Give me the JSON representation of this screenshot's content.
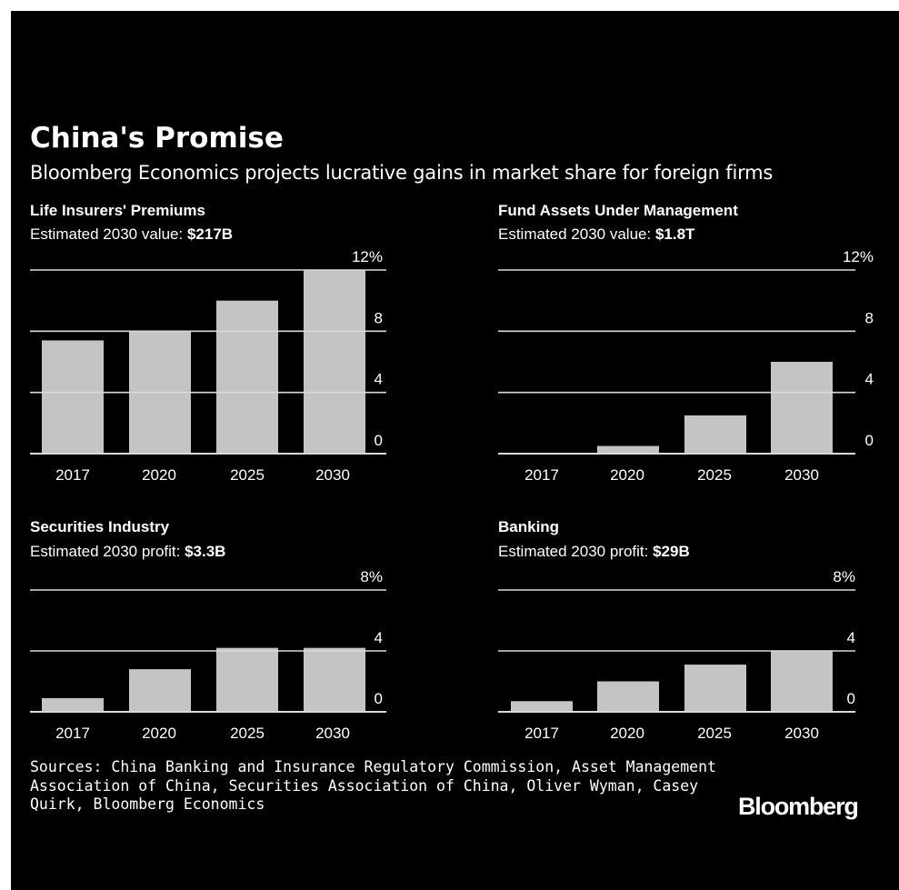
{
  "title": "China's Promise",
  "subtitle": "Bloomberg Economics projects lucrative gains in market share for foreign firms",
  "panels": [
    {
      "title": "Life Insurers' Premiums",
      "subtitle_prefix": "Estimated 2030 value: ",
      "subtitle_value": "$217B"
    },
    {
      "title": "Fund Assets Under Management",
      "subtitle_prefix": "Estimated 2030 value: ",
      "subtitle_value": "$1.8T"
    },
    {
      "title": "Securities Industry",
      "subtitle_prefix": "Estimated 2030 profit: ",
      "subtitle_value": "$3.3B"
    },
    {
      "title": "Banking",
      "subtitle_prefix": "Estimated 2030 profit: ",
      "subtitle_value": "$29B"
    }
  ],
  "chart_data": [
    {
      "type": "bar",
      "title": "Life Insurers' Premiums",
      "categories": [
        "2017",
        "2020",
        "2025",
        "2030"
      ],
      "values": [
        7.4,
        8.0,
        10.0,
        12.0
      ],
      "ylim": [
        0,
        12
      ],
      "yticks": [
        "0",
        "4",
        "8",
        "12%"
      ],
      "grid": true,
      "bar_color": "#c4c4c4"
    },
    {
      "type": "bar",
      "title": "Fund Assets Under Management",
      "categories": [
        "2017",
        "2020",
        "2025",
        "2030"
      ],
      "values": [
        0.0,
        0.5,
        2.5,
        6.0
      ],
      "ylim": [
        0,
        12
      ],
      "yticks": [
        "0",
        "4",
        "8",
        "12%"
      ],
      "grid": true,
      "bar_color": "#c4c4c4"
    },
    {
      "type": "bar",
      "title": "Securities Industry",
      "categories": [
        "2017",
        "2020",
        "2025",
        "2030"
      ],
      "values": [
        0.9,
        2.8,
        4.2,
        4.2
      ],
      "ylim": [
        0,
        8
      ],
      "yticks": [
        "0",
        "4",
        "8%"
      ],
      "grid": true,
      "bar_color": "#c4c4c4"
    },
    {
      "type": "bar",
      "title": "Banking",
      "categories": [
        "2017",
        "2020",
        "2025",
        "2030"
      ],
      "values": [
        0.7,
        2.0,
        3.1,
        4.0
      ],
      "ylim": [
        0,
        8
      ],
      "yticks": [
        "0",
        "4",
        "8%"
      ],
      "grid": true,
      "bar_color": "#c4c4c4"
    }
  ],
  "sources": "Sources: China Banking and Insurance Regulatory Commission, Asset Management Association of China, Securities Association of China, Oliver Wyman, Casey Quirk, Bloomberg Economics",
  "logo": "Bloomberg",
  "colors": {
    "background": "#000000",
    "text": "#ffffff",
    "bars": "#c4c4c4",
    "gridlines": "#d9d9d9"
  }
}
